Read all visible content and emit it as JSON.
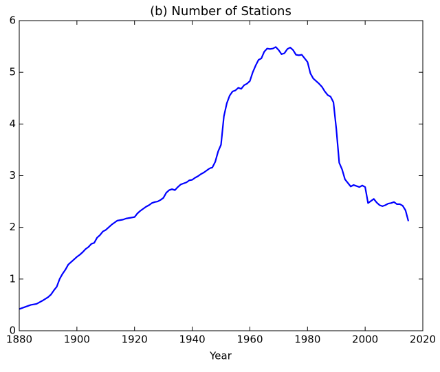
{
  "chart_data": {
    "type": "line",
    "title": "(b) Number of Stations",
    "x_label": "Year",
    "x": [
      1880,
      1882,
      1884,
      1886,
      1888,
      1890,
      1891,
      1892,
      1893,
      1894,
      1895,
      1896,
      1897,
      1898,
      1899,
      1900,
      1901,
      1902,
      1903,
      1904,
      1905,
      1906,
      1907,
      1908,
      1909,
      1910,
      1911,
      1912,
      1913,
      1914,
      1915,
      1916,
      1917,
      1918,
      1919,
      1920,
      1921,
      1922,
      1923,
      1924,
      1925,
      1926,
      1927,
      1928,
      1929,
      1930,
      1931,
      1932,
      1933,
      1934,
      1935,
      1936,
      1937,
      1938,
      1939,
      1940,
      1941,
      1942,
      1943,
      1944,
      1945,
      1946,
      1947,
      1948,
      1949,
      1950,
      1951,
      1952,
      1953,
      1954,
      1955,
      1956,
      1957,
      1958,
      1959,
      1960,
      1961,
      1962,
      1963,
      1964,
      1965,
      1966,
      1967,
      1968,
      1969,
      1970,
      1971,
      1972,
      1973,
      1974,
      1975,
      1976,
      1977,
      1978,
      1979,
      1980,
      1981,
      1982,
      1983,
      1984,
      1985,
      1986,
      1987,
      1988,
      1989,
      1990,
      1991,
      1992,
      1993,
      1994,
      1995,
      1996,
      1997,
      1998,
      1999,
      2000,
      2001,
      2002,
      2003,
      2004,
      2005,
      2006,
      2007,
      2008,
      2009,
      2010,
      2011,
      2012,
      2013,
      2014,
      2015
    ],
    "series": [
      {
        "name": "stations",
        "color": "#0000ff",
        "values": [
          0.42,
          0.46,
          0.5,
          0.52,
          0.58,
          0.65,
          0.7,
          0.78,
          0.85,
          1.0,
          1.1,
          1.18,
          1.28,
          1.33,
          1.38,
          1.43,
          1.47,
          1.52,
          1.58,
          1.62,
          1.68,
          1.7,
          1.8,
          1.85,
          1.92,
          1.95,
          2.0,
          2.05,
          2.09,
          2.13,
          2.14,
          2.15,
          2.17,
          2.18,
          2.19,
          2.2,
          2.27,
          2.32,
          2.36,
          2.4,
          2.43,
          2.47,
          2.49,
          2.5,
          2.53,
          2.57,
          2.67,
          2.72,
          2.74,
          2.72,
          2.78,
          2.83,
          2.85,
          2.87,
          2.91,
          2.92,
          2.96,
          2.99,
          3.03,
          3.06,
          3.1,
          3.14,
          3.16,
          3.27,
          3.47,
          3.6,
          4.15,
          4.4,
          4.55,
          4.63,
          4.65,
          4.7,
          4.68,
          4.75,
          4.78,
          4.83,
          5.0,
          5.13,
          5.24,
          5.27,
          5.4,
          5.46,
          5.45,
          5.46,
          5.49,
          5.43,
          5.35,
          5.37,
          5.45,
          5.48,
          5.43,
          5.34,
          5.33,
          5.34,
          5.27,
          5.2,
          4.98,
          4.88,
          4.83,
          4.78,
          4.72,
          4.63,
          4.56,
          4.53,
          4.42,
          3.9,
          3.25,
          3.12,
          2.93,
          2.86,
          2.79,
          2.82,
          2.8,
          2.78,
          2.81,
          2.78,
          2.47,
          2.51,
          2.55,
          2.48,
          2.43,
          2.41,
          2.43,
          2.46,
          2.47,
          2.49,
          2.45,
          2.45,
          2.42,
          2.33,
          2.12
        ]
      }
    ],
    "xlim": [
      1880,
      2020
    ],
    "xticks": [
      1880,
      1900,
      1920,
      1940,
      1960,
      1980,
      2000,
      2020
    ],
    "ylim": [
      0,
      6
    ],
    "yticks": [
      0,
      1,
      2,
      3,
      4,
      5,
      6
    ]
  }
}
